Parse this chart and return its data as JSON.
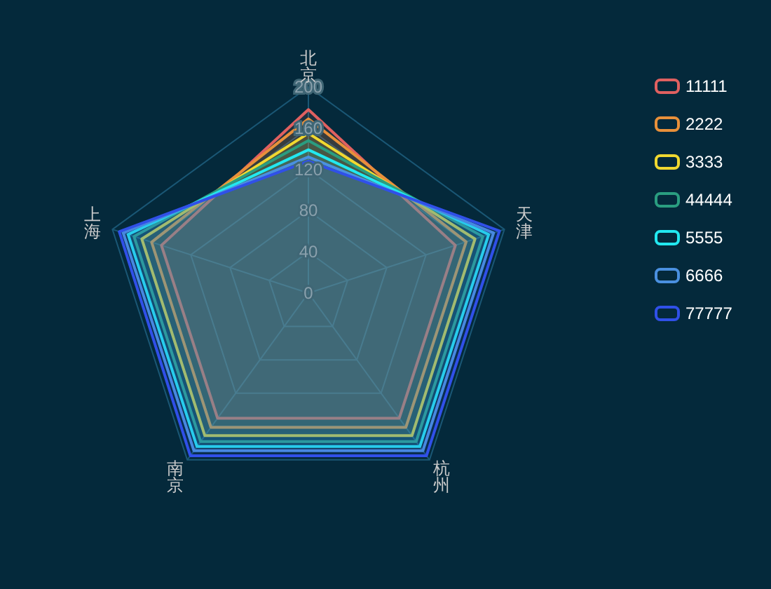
{
  "chart_data": {
    "type": "radar",
    "categories": [
      "北京",
      "天津",
      "杭州",
      "南京",
      "上海"
    ],
    "ylim": [
      0,
      200
    ],
    "yticks": [
      0,
      40,
      80,
      120,
      160,
      200
    ],
    "grid": true,
    "legend": "top right",
    "series": [
      {
        "name": "11111",
        "color": "#e06060",
        "values": [
          178,
          150,
          150,
          150,
          150
        ]
      },
      {
        "name": "2222",
        "color": "#e8903a",
        "values": [
          169,
          161,
          161,
          161,
          160
        ]
      },
      {
        "name": "3333",
        "color": "#f0d830",
        "values": [
          155,
          170,
          171,
          171,
          170
        ]
      },
      {
        "name": "44444",
        "color": "#2a9d80",
        "values": [
          148,
          178,
          178,
          178,
          178
        ]
      },
      {
        "name": "5555",
        "color": "#22e8f0",
        "values": [
          139,
          184,
          184,
          184,
          184
        ]
      },
      {
        "name": "6666",
        "color": "#4a90e0",
        "values": [
          132,
          189,
          189,
          189,
          189
        ]
      },
      {
        "name": "77777",
        "color": "#3050e8",
        "values": [
          128,
          195,
          195,
          195,
          193
        ]
      }
    ]
  }
}
